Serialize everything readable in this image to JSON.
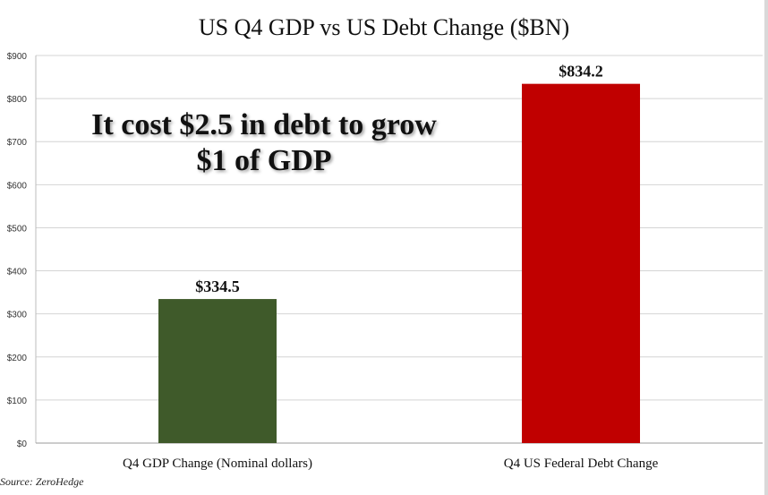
{
  "chart_data": {
    "type": "bar",
    "title": "US Q4 GDP vs US Debt Change ($BN)",
    "categories": [
      "Q4 GDP Change (Nominal dollars)",
      "Q4 US Federal Debt Change"
    ],
    "values": [
      334.5,
      834.2
    ],
    "value_labels": [
      "$334.5",
      "$834.2"
    ],
    "bar_colors": [
      "#3f5a2a",
      "#c00000"
    ],
    "ylim": [
      0,
      900
    ],
    "yticks": [
      0,
      100,
      200,
      300,
      400,
      500,
      600,
      700,
      800,
      900
    ],
    "ytick_labels": [
      "$0",
      "$100",
      "$200",
      "$300",
      "$400",
      "$500",
      "$600",
      "$700",
      "$800",
      "$900"
    ],
    "grid": true,
    "annotation": [
      "It cost $2.5 in debt to grow",
      "$1 of GDP"
    ],
    "source": "Source: ZeroHedge"
  }
}
